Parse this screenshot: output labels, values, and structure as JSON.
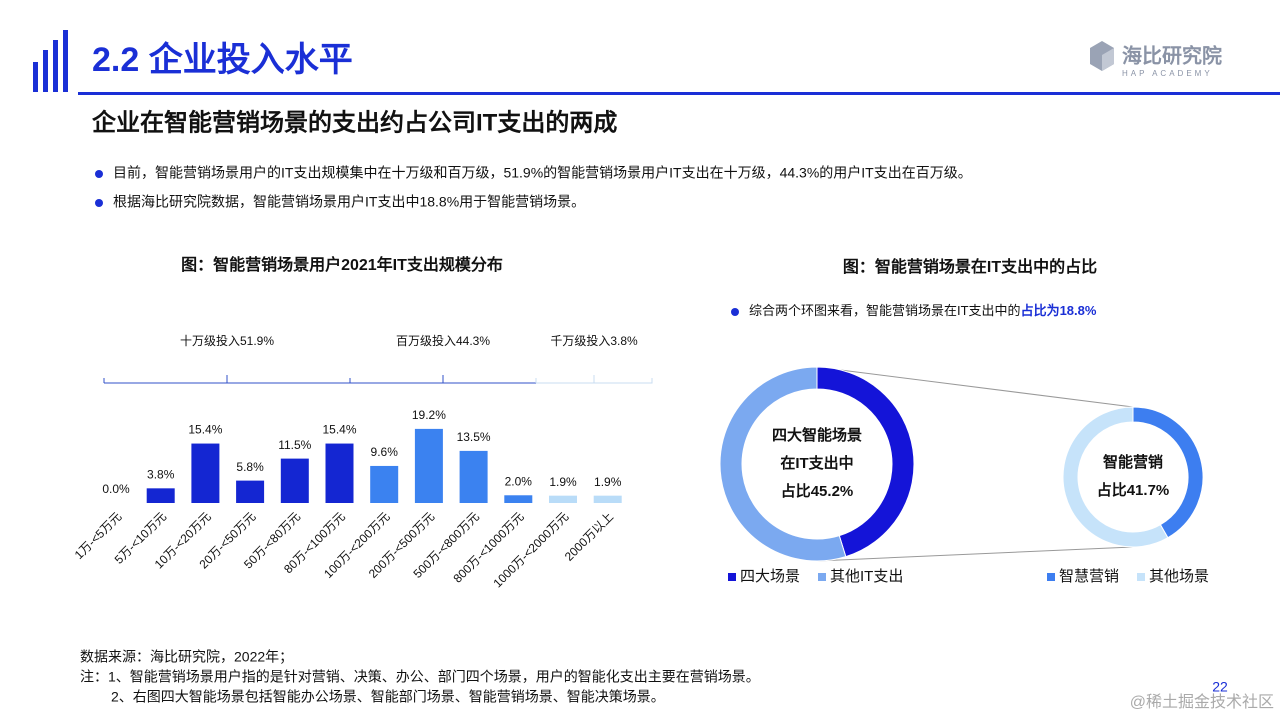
{
  "header": {
    "section": "2.2 企业投入水平",
    "logo": "海比研究院",
    "logo_sub": "HAP ACADEMY",
    "subtitle": "企业在智能营销场景的支出约占公司IT支出的两成",
    "bullets": [
      "目前，智能营销场景用户的IT支出规模集中在十万级和百万级，51.9%的智能营销场景用户IT支出在十万级，44.3%的用户IT支出在百万级。",
      "根据海比研究院数据，智能营销场景用户IT支出中18.8%用于智能营销场景。"
    ]
  },
  "chart_data": [
    {
      "type": "bar",
      "title": "图：智能营销场景用户2021年IT支出规模分布",
      "groups": [
        "十万级投入51.9%",
        "百万级投入44.3%",
        "千万级投入3.8%"
      ],
      "categories": [
        "1万-<5万元",
        "5万-<10万元",
        "10万-<20万元",
        "20万-<50万元",
        "50万-<80万元",
        "80万-<100万元",
        "100万-<200万元",
        "200万-<500万元",
        "500万-<800万元",
        "800万-<1000万元",
        "1000万-<2000万元",
        "2000万以上"
      ],
      "values": [
        0.0,
        3.8,
        15.4,
        5.8,
        11.5,
        15.4,
        9.6,
        19.2,
        13.5,
        2.0,
        1.9,
        1.9
      ],
      "value_labels": [
        "0.0%",
        "3.8%",
        "15.4%",
        "5.8%",
        "11.5%",
        "15.4%",
        "9.6%",
        "19.2%",
        "13.5%",
        "2.0%",
        "1.9%",
        "1.9%"
      ],
      "colors": [
        "#1426d2",
        "#1426d2",
        "#1426d2",
        "#1426d2",
        "#1426d2",
        "#1426d2",
        "#3b82f0",
        "#3b82f0",
        "#3b82f0",
        "#3b82f0",
        "#b9dcf8",
        "#b9dcf8"
      ]
    },
    {
      "type": "donut",
      "title": "图：智能营销场景在IT支出中的占比",
      "note": "综合两个环图来看，智能营销场景在IT支出中的",
      "note_emph": "占比为18.8%",
      "categories": [
        "四大场景",
        "其他IT支出"
      ],
      "values": [
        45.2,
        54.8
      ],
      "colors": [
        "#1414d8",
        "#7ba9f0"
      ],
      "center_label": [
        "四大智能场景",
        "在IT支出中",
        "占比45.2%"
      ]
    },
    {
      "type": "donut",
      "categories": [
        "智慧营销",
        "其他场景"
      ],
      "values": [
        41.7,
        58.3
      ],
      "colors": [
        "#3d7ef0",
        "#c6e3fa"
      ],
      "center_label": [
        "智能营销",
        "占比41.7%"
      ]
    }
  ],
  "footer": {
    "source": "数据来源：海比研究院，2022年；",
    "notes": [
      "注：1、智能营销场景用户指的是针对营销、决策、办公、部门四个场景，用户的智能化支出主要在营销场景。",
      "2、右图四大智能场景包括智能办公场景、智能部门场景、智能营销场景、智能决策场景。"
    ],
    "page": "22",
    "watermark": "@稀土掘金技术社区"
  }
}
